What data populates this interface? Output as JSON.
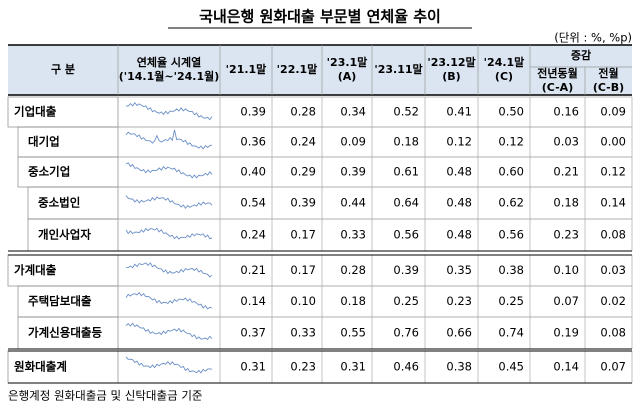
{
  "title": "국내은행 원화대출 부문별 연체율 추이",
  "unit": "(단위 : %, %p)",
  "header": {
    "category": "구  분",
    "series": [
      "연체율 시계열",
      "('14.1월~'24.1월)"
    ],
    "periods": [
      [
        "'21.1말"
      ],
      [
        "'22.1말"
      ],
      [
        "'23.1말",
        "(A)"
      ],
      [
        "'23.11말"
      ],
      [
        "'23.12말",
        "(B)"
      ],
      [
        "'24.1말",
        "(C)"
      ]
    ],
    "change": "증감",
    "changes": [
      [
        "전년동월",
        "(C-A)"
      ],
      [
        "전월",
        "(C-B)"
      ]
    ]
  },
  "rows": [
    {
      "label": "기업대출",
      "values": [
        "0.39",
        "0.28",
        "0.34",
        "0.52",
        "0.41",
        "0.50",
        "0.16",
        "0.09"
      ]
    },
    {
      "label": "대기업",
      "values": [
        "0.36",
        "0.24",
        "0.09",
        "0.18",
        "0.12",
        "0.12",
        "0.03",
        "0.00"
      ]
    },
    {
      "label": "중소기업",
      "values": [
        "0.40",
        "0.29",
        "0.39",
        "0.61",
        "0.48",
        "0.60",
        "0.21",
        "0.12"
      ]
    },
    {
      "label": "중소법인",
      "values": [
        "0.54",
        "0.39",
        "0.44",
        "0.64",
        "0.48",
        "0.62",
        "0.18",
        "0.14"
      ]
    },
    {
      "label": "개인사업자",
      "values": [
        "0.24",
        "0.17",
        "0.33",
        "0.56",
        "0.48",
        "0.56",
        "0.23",
        "0.08"
      ]
    },
    {
      "label": "가계대출",
      "values": [
        "0.21",
        "0.17",
        "0.28",
        "0.39",
        "0.35",
        "0.38",
        "0.10",
        "0.03"
      ]
    },
    {
      "label": "주택담보대출",
      "values": [
        "0.14",
        "0.10",
        "0.18",
        "0.25",
        "0.23",
        "0.25",
        "0.07",
        "0.02"
      ]
    },
    {
      "label": "가계신용대출등",
      "values": [
        "0.37",
        "0.33",
        "0.55",
        "0.76",
        "0.66",
        "0.74",
        "0.19",
        "0.08"
      ]
    },
    {
      "label": "원화대출계",
      "values": [
        "0.31",
        "0.23",
        "0.31",
        "0.46",
        "0.38",
        "0.45",
        "0.14",
        "0.07"
      ]
    }
  ],
  "footnote": "은행계정 원화대출금 및 신탁대출금 기준"
}
